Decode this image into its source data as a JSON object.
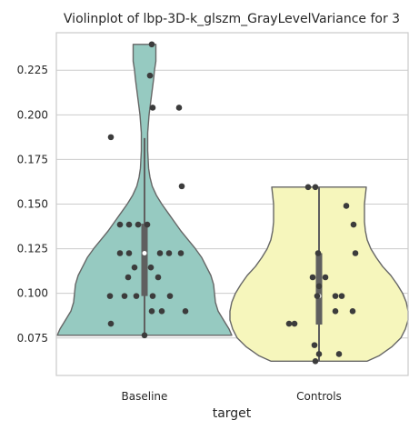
{
  "chart_data": {
    "type": "violin",
    "title": "Violinplot of lbp-3D-k_glszm_GrayLevelVariance for 3",
    "xlabel": "target",
    "ylabel": "",
    "categories": [
      "Baseline",
      "Controls"
    ],
    "yticks": [
      0.075,
      0.1,
      0.125,
      0.15,
      0.175,
      0.2,
      0.225
    ],
    "ytick_labels": [
      "0.075",
      "0.100",
      "0.125",
      "0.150",
      "0.175",
      "0.200",
      "0.225"
    ],
    "ylim": [
      0.054,
      0.246
    ],
    "grid": true,
    "violins": [
      {
        "category": "Baseline",
        "color": "#96cac1",
        "min": 0.0765,
        "max": 0.2395,
        "q1": 0.0985,
        "median": 0.1225,
        "q3": 0.139,
        "whisker_low": 0.0765,
        "whisker_high": 0.187,
        "profile": [
          [
            0.0765,
            0.96
          ],
          [
            0.08,
            0.93
          ],
          [
            0.085,
            0.87
          ],
          [
            0.09,
            0.81
          ],
          [
            0.095,
            0.78
          ],
          [
            0.1,
            0.77
          ],
          [
            0.105,
            0.76
          ],
          [
            0.11,
            0.73
          ],
          [
            0.115,
            0.68
          ],
          [
            0.12,
            0.63
          ],
          [
            0.125,
            0.56
          ],
          [
            0.13,
            0.48
          ],
          [
            0.135,
            0.4
          ],
          [
            0.14,
            0.33
          ],
          [
            0.145,
            0.26
          ],
          [
            0.15,
            0.19
          ],
          [
            0.155,
            0.13
          ],
          [
            0.16,
            0.085
          ],
          [
            0.165,
            0.06
          ],
          [
            0.17,
            0.045
          ],
          [
            0.18,
            0.035
          ],
          [
            0.19,
            0.035
          ],
          [
            0.2,
            0.05
          ],
          [
            0.21,
            0.075
          ],
          [
            0.22,
            0.1
          ],
          [
            0.225,
            0.11
          ],
          [
            0.23,
            0.125
          ],
          [
            0.2395,
            0.125
          ]
        ],
        "points": [
          [
            0.2395,
            0.08
          ],
          [
            0.222,
            0.06
          ],
          [
            0.204,
            0.09
          ],
          [
            0.204,
            0.38
          ],
          [
            0.1875,
            -0.37
          ],
          [
            0.16,
            0.41
          ],
          [
            0.1385,
            -0.27
          ],
          [
            0.1385,
            -0.17
          ],
          [
            0.1385,
            -0.07
          ],
          [
            0.1385,
            0.03
          ],
          [
            0.1225,
            -0.27
          ],
          [
            0.1225,
            -0.17
          ],
          [
            0.1225,
            0.17
          ],
          [
            0.1225,
            0.27
          ],
          [
            0.1225,
            0.4
          ],
          [
            0.1145,
            -0.11
          ],
          [
            0.1145,
            0.07
          ],
          [
            0.109,
            -0.18
          ],
          [
            0.109,
            0.15
          ],
          [
            0.0985,
            -0.38
          ],
          [
            0.0985,
            -0.22
          ],
          [
            0.0985,
            -0.09
          ],
          [
            0.0985,
            0.09
          ],
          [
            0.0985,
            0.28
          ],
          [
            0.09,
            0.08
          ],
          [
            0.09,
            0.19
          ],
          [
            0.09,
            0.45
          ],
          [
            0.083,
            -0.37
          ],
          [
            0.0765,
            0.0
          ]
        ]
      },
      {
        "category": "Controls",
        "color": "#f6f6bc",
        "min": 0.062,
        "max": 0.1595,
        "q1": 0.0825,
        "median": 0.0985,
        "q3": 0.1225,
        "whisker_low": 0.062,
        "whisker_high": 0.1595,
        "profile": [
          [
            0.062,
            0.53
          ],
          [
            0.065,
            0.66
          ],
          [
            0.07,
            0.8
          ],
          [
            0.075,
            0.9
          ],
          [
            0.08,
            0.95
          ],
          [
            0.085,
            0.98
          ],
          [
            0.09,
            0.98
          ],
          [
            0.095,
            0.96
          ],
          [
            0.1,
            0.92
          ],
          [
            0.105,
            0.86
          ],
          [
            0.11,
            0.79
          ],
          [
            0.115,
            0.7
          ],
          [
            0.12,
            0.63
          ],
          [
            0.125,
            0.57
          ],
          [
            0.13,
            0.53
          ],
          [
            0.135,
            0.51
          ],
          [
            0.14,
            0.5
          ],
          [
            0.145,
            0.5
          ],
          [
            0.15,
            0.5
          ],
          [
            0.155,
            0.51
          ],
          [
            0.1595,
            0.52
          ]
        ],
        "points": [
          [
            0.1595,
            -0.12
          ],
          [
            0.1595,
            -0.04
          ],
          [
            0.149,
            0.3
          ],
          [
            0.1385,
            0.38
          ],
          [
            0.1225,
            -0.01
          ],
          [
            0.1225,
            0.4
          ],
          [
            0.109,
            -0.07
          ],
          [
            0.109,
            0.07
          ],
          [
            0.104,
            0.0
          ],
          [
            0.0985,
            -0.02
          ],
          [
            0.0985,
            0.18
          ],
          [
            0.0985,
            0.25
          ],
          [
            0.09,
            0.18
          ],
          [
            0.09,
            0.37
          ],
          [
            0.083,
            -0.33
          ],
          [
            0.083,
            -0.27
          ],
          [
            0.071,
            -0.05
          ],
          [
            0.066,
            0.0
          ],
          [
            0.066,
            0.22
          ],
          [
            0.062,
            -0.04
          ]
        ]
      }
    ]
  }
}
